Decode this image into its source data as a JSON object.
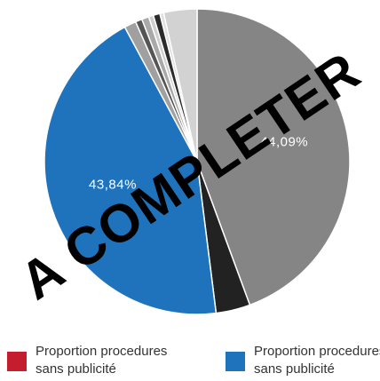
{
  "chart_data": {
    "type": "pie",
    "title": "",
    "slices": [
      {
        "value": 44.09,
        "label": "44,09%",
        "color": "#858585"
      },
      {
        "value": 3.6,
        "label": "",
        "color": "#222222"
      },
      {
        "value": 43.84,
        "label": "43,84%",
        "color": "#1f73bd"
      },
      {
        "value": 1.25,
        "label": "",
        "color": "#a0a0a0"
      },
      {
        "value": 0.7,
        "label": "",
        "color": "#555555"
      },
      {
        "value": 0.75,
        "label": "",
        "color": "#a9a9a9"
      },
      {
        "value": 0.5,
        "label": "",
        "color": "#cfcfcf"
      },
      {
        "value": 0.7,
        "label": "",
        "color": "#2b2b2b"
      },
      {
        "value": 0.4,
        "label": "",
        "color": "#e0e0e0"
      },
      {
        "value": 3.5,
        "label": "",
        "color": "#d2d2d2"
      }
    ],
    "legend": [
      {
        "label": "Proportion procedures sans publicité",
        "color": "#c41e2e"
      },
      {
        "label": "Proportion procedures sans publicité",
        "color": "#1f73bd"
      }
    ],
    "legend_position": "bottom"
  },
  "watermark": "A COMPLETER"
}
